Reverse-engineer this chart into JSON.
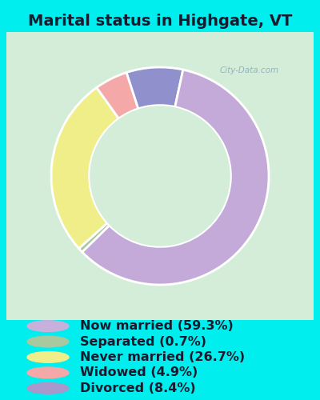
{
  "title": "Marital status in Highgate, VT",
  "background_outer": "#00EEEE",
  "background_chart": "#d4edd8",
  "categories": [
    "Now married",
    "Separated",
    "Never married",
    "Widowed",
    "Divorced"
  ],
  "values": [
    59.3,
    0.7,
    26.7,
    4.9,
    8.4
  ],
  "colors": [
    "#c4aad8",
    "#a8c8a0",
    "#f0ee88",
    "#f4a8a8",
    "#9090cc"
  ],
  "legend_labels": [
    "Now married (59.3%)",
    "Separated (0.7%)",
    "Never married (26.7%)",
    "Widowed (4.9%)",
    "Divorced (8.4%)"
  ],
  "legend_colors": [
    "#c8b0dc",
    "#a8c8a0",
    "#f0ee88",
    "#f4a8a8",
    "#a898cc"
  ],
  "donut_width": 0.35,
  "startangle": 108,
  "title_fontsize": 14,
  "legend_fontsize": 11.5,
  "text_color": "#1a1a2e"
}
